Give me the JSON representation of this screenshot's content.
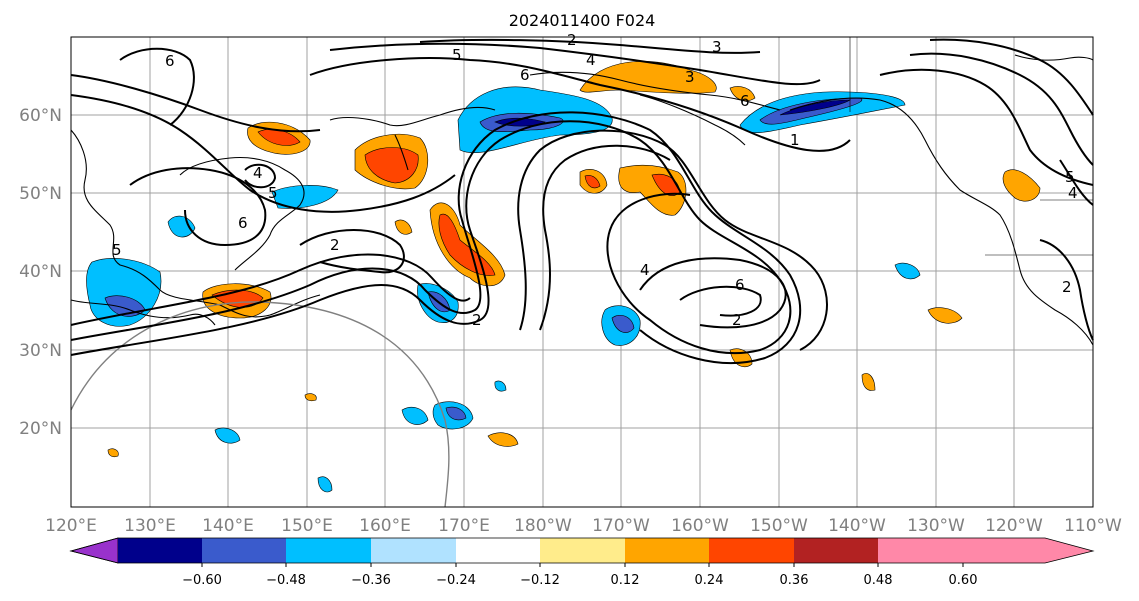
{
  "title": "2024011400 F024",
  "lat_labels": [
    "60°N",
    "50°N",
    "40°N",
    "30°N",
    "20°N"
  ],
  "lon_labels": [
    "120°E",
    "130°E",
    "140°E",
    "150°E",
    "160°E",
    "170°E",
    "180°W",
    "170°W",
    "160°W",
    "150°W",
    "140°W",
    "130°W",
    "120°W",
    "110°W"
  ],
  "colorbar": {
    "tick_labels": [
      "−0.60",
      "−0.48",
      "−0.36",
      "−0.24",
      "−0.12",
      "0.12",
      "0.24",
      "0.36",
      "0.48",
      "0.60"
    ],
    "colors": [
      "#9932cc",
      "#00008b",
      "#3a5bcc",
      "#00bfff",
      "#b0e2ff",
      "#ffffff",
      "#ffec8b",
      "#ffa500",
      "#ff4500",
      "#b22222",
      "#ff88a8"
    ]
  },
  "contour_labels": [
    "2",
    "3",
    "4",
    "5",
    "6",
    "6",
    "1",
    "2",
    "4",
    "5",
    "6",
    "6",
    "2",
    "4",
    "6",
    "5",
    "4",
    "2",
    "2",
    "3",
    "5"
  ],
  "colors": {
    "negative_dark": "#00008b",
    "negative_mid": "#3a5bcc",
    "negative_light": "#00bfff",
    "positive_light": "#ffec8b",
    "positive_mid": "#ffa500",
    "positive_dark": "#ff4500"
  }
}
